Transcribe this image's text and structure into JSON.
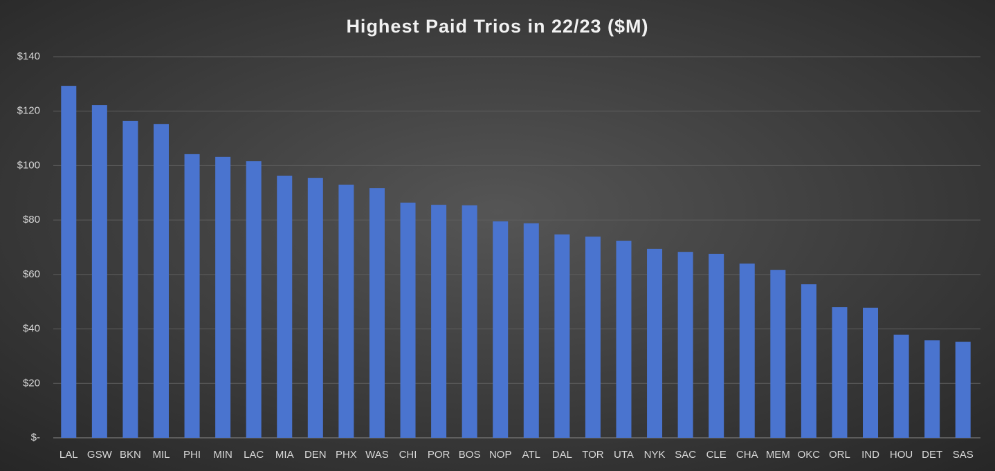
{
  "chart_data": {
    "type": "bar",
    "title": "Highest Paid Trios in 22/23 ($M)",
    "categories": [
      "LAL",
      "GSW",
      "BKN",
      "MIL",
      "PHI",
      "MIN",
      "LAC",
      "MIA",
      "DEN",
      "PHX",
      "WAS",
      "CHI",
      "POR",
      "BOS",
      "NOP",
      "ATL",
      "DAL",
      "TOR",
      "UTA",
      "NYK",
      "SAC",
      "CLE",
      "CHA",
      "MEM",
      "OKC",
      "ORL",
      "IND",
      "HOU",
      "DET",
      "SAS"
    ],
    "values": [
      129.3,
      122.2,
      116.4,
      115.3,
      104.2,
      103.2,
      101.6,
      96.3,
      95.5,
      93.0,
      91.7,
      86.4,
      85.6,
      85.4,
      79.5,
      78.8,
      74.7,
      73.9,
      72.4,
      69.4,
      68.3,
      67.6,
      64.0,
      61.7,
      56.4,
      48.0,
      47.8,
      37.9,
      35.8,
      35.3
    ],
    "color": "#4a74cf",
    "ylim": [
      0,
      140
    ],
    "yticks": [
      {
        "value": 0,
        "label": "$-"
      },
      {
        "value": 20,
        "label": "$20"
      },
      {
        "value": 40,
        "label": "$40"
      },
      {
        "value": 60,
        "label": "$60"
      },
      {
        "value": 80,
        "label": "$80"
      },
      {
        "value": 100,
        "label": "$100"
      },
      {
        "value": 120,
        "label": "$120"
      },
      {
        "value": 140,
        "label": "$140"
      }
    ],
    "grid": true
  }
}
